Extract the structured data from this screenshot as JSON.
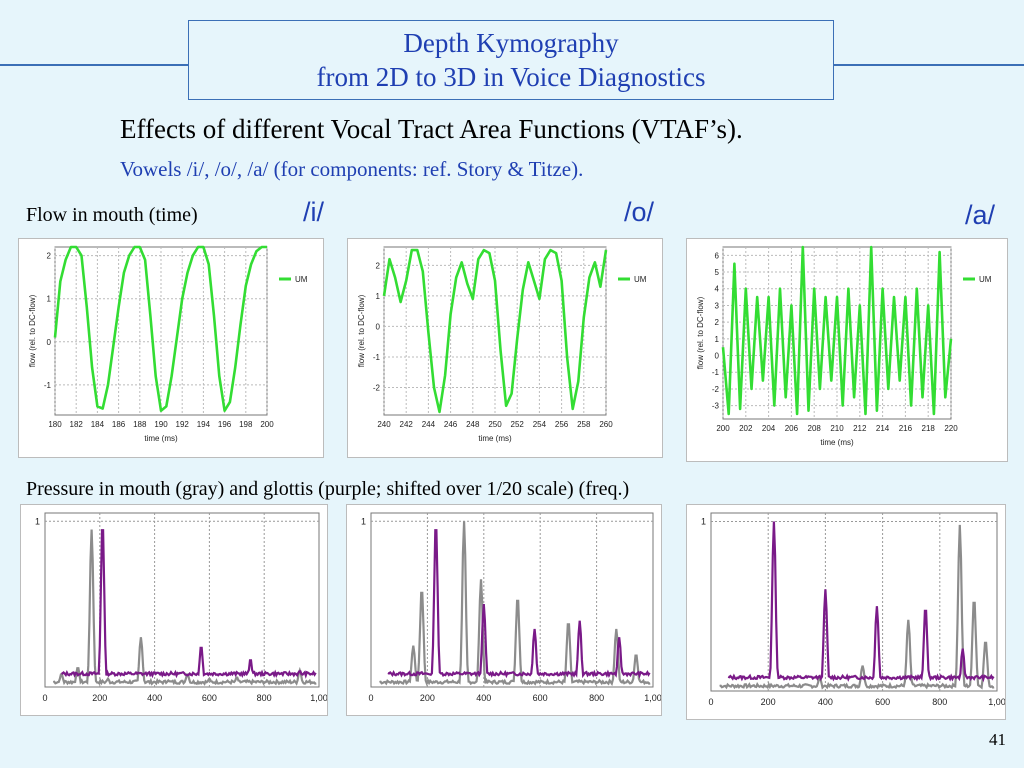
{
  "title": {
    "line1": "Depth Kymography",
    "line2": "from 2D to 3D in Voice Diagnostics"
  },
  "heading": "Effects of different Vocal Tract Area Functions (VTAF’s).",
  "subheading": "Vowels   /i/, /o/, /a/  (for components: ref. Story & Titze).",
  "flow_label": "Flow in mouth (time)",
  "pressure_label": "Pressure in mouth (gray) and glottis (purple; shifted over 1/20 scale)  (freq.)",
  "vowels": [
    "/i/",
    "/o/",
    "/a/"
  ],
  "page_number": "41",
  "colors": {
    "flow": "#33dd33",
    "mouth_pressure": "#8c8c8c",
    "glottis_pressure": "#7a1a88",
    "title": "#1f3fb2"
  },
  "chart_data": [
    {
      "type": "line",
      "vowel": "/i/",
      "xlabel": "time (ms)",
      "ylabel": "flow (rel. to DC-flow)",
      "xlim": [
        180,
        200
      ],
      "ylim": [
        -1.7,
        2.2
      ],
      "xticks": [
        180,
        182,
        184,
        186,
        188,
        190,
        192,
        194,
        196,
        198,
        200
      ],
      "yticks": [
        2,
        1,
        0,
        -1
      ],
      "legend": "UM",
      "grid": true,
      "series": [
        {
          "name": "UM",
          "x": [
            180,
            180.5,
            181,
            181.5,
            182,
            182.5,
            183,
            183.5,
            184,
            184.5,
            185,
            185.5,
            186,
            186.5,
            187,
            187.5,
            188,
            188.5,
            189,
            189.5,
            190,
            190.5,
            191,
            191.5,
            192,
            192.5,
            193,
            193.5,
            194,
            194.5,
            195,
            195.5,
            196,
            196.5,
            197,
            197.5,
            198,
            198.5,
            199,
            199.5,
            200
          ],
          "y": [
            0.1,
            1.4,
            1.9,
            2.2,
            2.2,
            2.0,
            0.8,
            -0.6,
            -1.5,
            -1.55,
            -1.0,
            -0.1,
            0.8,
            1.6,
            2.0,
            2.2,
            2.2,
            1.9,
            0.6,
            -0.8,
            -1.6,
            -1.5,
            -0.8,
            0.1,
            1.0,
            1.6,
            2.0,
            2.2,
            2.2,
            1.8,
            0.6,
            -0.8,
            -1.6,
            -1.4,
            -0.6,
            0.4,
            1.3,
            1.8,
            2.1,
            2.2,
            2.2
          ]
        }
      ]
    },
    {
      "type": "line",
      "vowel": "/o/",
      "xlabel": "time (ms)",
      "ylabel": "flow (rel. to DC-flow)",
      "xlim": [
        240,
        260
      ],
      "ylim": [
        -2.9,
        2.6
      ],
      "xticks": [
        240,
        242,
        244,
        246,
        248,
        250,
        252,
        254,
        256,
        258,
        260
      ],
      "yticks": [
        2,
        1,
        0,
        -1,
        -2
      ],
      "legend": "UM",
      "grid": true,
      "series": [
        {
          "name": "UM",
          "x": [
            240,
            240.5,
            241,
            241.5,
            242,
            242.5,
            243,
            243.5,
            244,
            244.5,
            245,
            245.5,
            246,
            246.5,
            247,
            247.5,
            248,
            248.5,
            249,
            249.5,
            250,
            250.5,
            251,
            251.5,
            252,
            252.5,
            253,
            253.5,
            254,
            254.5,
            255,
            255.5,
            256,
            256.5,
            257,
            257.5,
            258,
            258.5,
            259,
            259.5,
            260
          ],
          "y": [
            1.0,
            2.2,
            1.6,
            0.8,
            1.5,
            2.5,
            2.5,
            1.8,
            -0.2,
            -2.0,
            -2.8,
            -1.6,
            0.4,
            1.6,
            2.1,
            1.4,
            0.9,
            2.2,
            2.5,
            2.4,
            1.5,
            -0.8,
            -2.6,
            -2.2,
            -0.4,
            1.2,
            2.1,
            1.5,
            0.9,
            2.2,
            2.5,
            2.4,
            1.5,
            -1.0,
            -2.7,
            -1.8,
            0.3,
            1.6,
            2.1,
            1.3,
            2.5
          ]
        }
      ]
    },
    {
      "type": "line",
      "vowel": "/a/",
      "xlabel": "time (ms)",
      "ylabel": "flow (rel. to DC-flow)",
      "xlim": [
        200,
        220
      ],
      "ylim": [
        -3.8,
        6.5
      ],
      "xticks": [
        200,
        202,
        204,
        206,
        208,
        210,
        212,
        214,
        216,
        218,
        220
      ],
      "yticks": [
        6,
        5,
        4,
        3,
        2,
        1,
        0,
        -1,
        -2,
        -3
      ],
      "legend": "UM",
      "grid": true,
      "series": [
        {
          "name": "UM",
          "x": [
            200,
            200.5,
            201,
            201.5,
            202,
            202.5,
            203,
            203.5,
            204,
            204.5,
            205,
            205.5,
            206,
            206.5,
            207,
            207.5,
            208,
            208.5,
            209,
            209.5,
            210,
            210.5,
            211,
            211.5,
            212,
            212.5,
            213,
            213.5,
            214,
            214.5,
            215,
            215.5,
            216,
            216.5,
            217,
            217.5,
            218,
            218.5,
            219,
            219.5,
            220
          ],
          "y": [
            0.5,
            -3.5,
            5.5,
            -3.2,
            4.0,
            -2.0,
            3.5,
            -1.5,
            3.5,
            -3.0,
            4.0,
            -2.5,
            3.0,
            -3.5,
            6.5,
            -3.3,
            4.0,
            -2.0,
            3.5,
            -1.5,
            3.5,
            -3.0,
            4.0,
            -2.5,
            3.0,
            -3.5,
            6.5,
            -3.3,
            4.0,
            -2.0,
            3.5,
            -1.5,
            3.5,
            -3.0,
            4.0,
            -2.5,
            3.0,
            -3.5,
            6.2,
            -2.5,
            1.0
          ]
        }
      ]
    },
    {
      "type": "line",
      "vowel": "/i/",
      "xlim": [
        0,
        1000
      ],
      "ylim": [
        0,
        1.05
      ],
      "xticks": [
        "0",
        "200",
        "400",
        "600",
        "800",
        "1,00"
      ],
      "yticks": [
        "1"
      ],
      "grid": true,
      "series": [
        {
          "name": "mouth (gray)",
          "peaks": [
            [
              60,
              0.08
            ],
            [
              120,
              0.12
            ],
            [
              170,
              0.95
            ],
            [
              230,
              0.05
            ],
            [
              350,
              0.3
            ],
            [
              450,
              0.04
            ],
            [
              520,
              0.08
            ],
            [
              600,
              0.05
            ],
            [
              700,
              0.06
            ],
            [
              930,
              0.1
            ]
          ]
        },
        {
          "name": "glottis (purple)",
          "peaks": [
            [
              210,
              1.0
            ],
            [
              570,
              0.25
            ],
            [
              750,
              0.17
            ],
            [
              930,
              0.1
            ]
          ]
        }
      ]
    },
    {
      "type": "line",
      "vowel": "/o/",
      "xlim": [
        0,
        1000
      ],
      "ylim": [
        0,
        1.05
      ],
      "xticks": [
        "0",
        "200",
        "400",
        "600",
        "800",
        "1,00"
      ],
      "yticks": [
        "1"
      ],
      "grid": true,
      "series": [
        {
          "name": "mouth (gray)",
          "peaks": [
            [
              150,
              0.25
            ],
            [
              180,
              0.6
            ],
            [
              330,
              1.0
            ],
            [
              390,
              0.65
            ],
            [
              520,
              0.55
            ],
            [
              700,
              0.4
            ],
            [
              870,
              0.35
            ],
            [
              940,
              0.2
            ]
          ]
        },
        {
          "name": "glottis (purple)",
          "peaks": [
            [
              230,
              1.0
            ],
            [
              400,
              0.5
            ],
            [
              580,
              0.35
            ],
            [
              740,
              0.4
            ],
            [
              880,
              0.3
            ]
          ]
        }
      ]
    },
    {
      "type": "line",
      "vowel": "/a/",
      "xlim": [
        0,
        1000
      ],
      "ylim": [
        0,
        1.05
      ],
      "xticks": [
        "0",
        "200",
        "400",
        "600",
        "800",
        "1,00"
      ],
      "yticks": [
        "1"
      ],
      "grid": true,
      "series": [
        {
          "name": "mouth (gray)",
          "peaks": [
            [
              380,
              0.08
            ],
            [
              530,
              0.15
            ],
            [
              690,
              0.42
            ],
            [
              870,
              0.98
            ],
            [
              920,
              0.55
            ],
            [
              960,
              0.3
            ]
          ]
        },
        {
          "name": "glottis (purple)",
          "peaks": [
            [
              220,
              1.0
            ],
            [
              400,
              0.6
            ],
            [
              580,
              0.5
            ],
            [
              750,
              0.5
            ],
            [
              880,
              0.25
            ]
          ]
        }
      ]
    }
  ]
}
